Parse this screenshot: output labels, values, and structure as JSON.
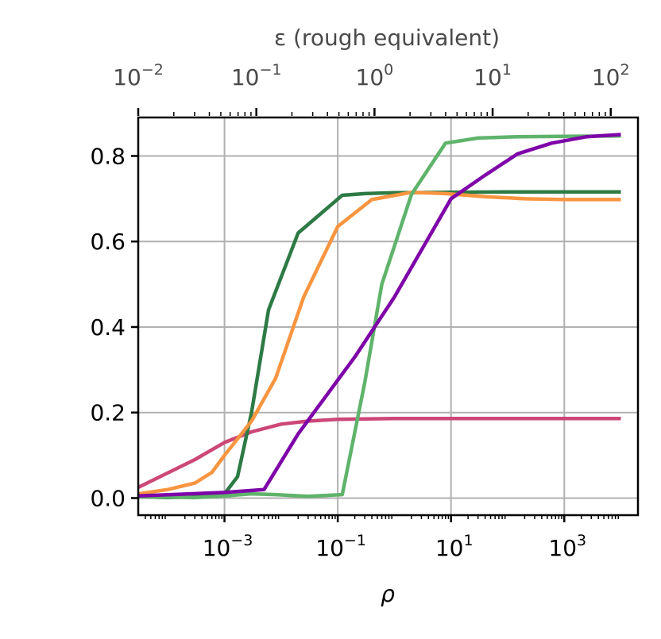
{
  "chart_data": {
    "type": "line",
    "xlabel": "ρ",
    "xscale": "log",
    "xlim": [
      3e-05,
      20000
    ],
    "ylim": [
      -0.04,
      0.89
    ],
    "grid": true,
    "legend": "none",
    "x_ticks": [
      {
        "value": 0.001,
        "mant": "10",
        "exp": "−3"
      },
      {
        "value": 0.1,
        "mant": "10",
        "exp": "−1"
      },
      {
        "value": 10,
        "mant": "10",
        "exp": "1"
      },
      {
        "value": 1000,
        "mant": "10",
        "exp": "3"
      }
    ],
    "y_ticks": [
      {
        "value": 0.0,
        "label": "0.0"
      },
      {
        "value": 0.2,
        "label": "0.2"
      },
      {
        "value": 0.4,
        "label": "0.4"
      },
      {
        "value": 0.6,
        "label": "0.6"
      },
      {
        "value": 0.8,
        "label": "0.8"
      }
    ],
    "top_axis": {
      "label": "ε (rough equivalent)",
      "scale": "log",
      "xlim": [
        0.01,
        170
      ],
      "ticks": [
        {
          "value": 0.01,
          "mant": "10",
          "exp": "−2"
        },
        {
          "value": 0.1,
          "mant": "10",
          "exp": "−1"
        },
        {
          "value": 1,
          "mant": "10",
          "exp": "0"
        },
        {
          "value": 10,
          "mant": "10",
          "exp": "1"
        },
        {
          "value": 100,
          "mant": "10",
          "exp": "2"
        }
      ]
    },
    "series": [
      {
        "color": "#cc4778",
        "x": [
          3e-05,
          0.0003,
          0.001,
          0.003,
          0.01,
          0.03,
          0.1,
          0.3,
          1,
          3,
          10,
          100,
          1000,
          10000
        ],
        "y": [
          0.025,
          0.09,
          0.13,
          0.155,
          0.173,
          0.18,
          0.184,
          0.185,
          0.186,
          0.186,
          0.186,
          0.186,
          0.186,
          0.186
        ]
      },
      {
        "color": "#2d7a45",
        "x": [
          3e-05,
          0.0001,
          0.0003,
          0.001,
          0.0017,
          0.003,
          0.006,
          0.02,
          0.12,
          0.3,
          1,
          10,
          100,
          1000,
          10000
        ],
        "y": [
          0.003,
          0.001,
          0.003,
          0.01,
          0.05,
          0.2,
          0.44,
          0.62,
          0.708,
          0.712,
          0.714,
          0.715,
          0.716,
          0.716,
          0.716
        ]
      },
      {
        "color": "#f89540",
        "x": [
          3e-05,
          0.0001,
          0.0003,
          0.0006,
          0.001,
          0.003,
          0.008,
          0.025,
          0.1,
          0.4,
          2,
          8,
          40,
          200,
          1000,
          10000
        ],
        "y": [
          0.01,
          0.02,
          0.035,
          0.06,
          0.1,
          0.18,
          0.28,
          0.47,
          0.635,
          0.698,
          0.715,
          0.712,
          0.705,
          0.7,
          0.698,
          0.698
        ]
      },
      {
        "color": "#5fb36b",
        "x": [
          3e-05,
          0.0003,
          0.001,
          0.003,
          0.008,
          0.03,
          0.12,
          0.3,
          0.6,
          2,
          8,
          30,
          150,
          1000,
          10000
        ],
        "y": [
          0.003,
          0.001,
          0.005,
          0.01,
          0.008,
          0.004,
          0.008,
          0.27,
          0.5,
          0.71,
          0.83,
          0.842,
          0.845,
          0.846,
          0.847
        ]
      },
      {
        "color": "#7e03a8",
        "x": [
          3e-05,
          0.001,
          0.005,
          0.02,
          0.2,
          1,
          10,
          40,
          150,
          600,
          2500,
          10000
        ],
        "y": [
          0.005,
          0.013,
          0.02,
          0.15,
          0.33,
          0.47,
          0.7,
          0.755,
          0.805,
          0.83,
          0.845,
          0.85
        ]
      }
    ]
  }
}
